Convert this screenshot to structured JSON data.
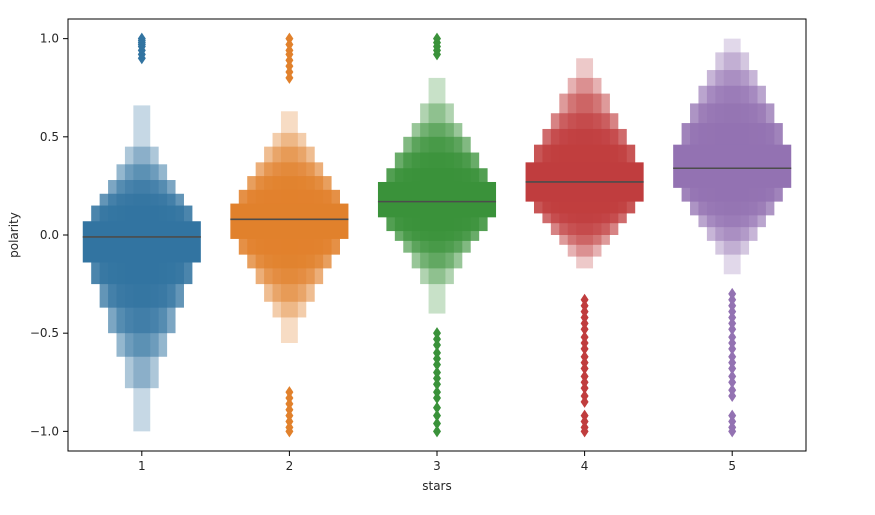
{
  "chart_data": {
    "type": "boxen",
    "title": "",
    "xlabel": "stars",
    "ylabel": "polarity",
    "categories": [
      "1",
      "2",
      "3",
      "4",
      "5"
    ],
    "ylim": [
      -1.1,
      1.1
    ],
    "yticks": [
      -1.0,
      -0.5,
      0.0,
      0.5,
      1.0
    ],
    "ytick_labels": [
      "−1.0",
      "−0.5",
      "0.0",
      "0.5",
      "1.0"
    ],
    "grid": false,
    "legend": "none",
    "series": [
      {
        "category": "1",
        "color": "#3274a1",
        "median": -0.01,
        "letter_values": [
          [
            -0.14,
            0.07
          ],
          [
            -0.25,
            0.15
          ],
          [
            -0.37,
            0.21
          ],
          [
            -0.5,
            0.28
          ],
          [
            -0.62,
            0.36
          ],
          [
            -0.78,
            0.45
          ],
          [
            -1.0,
            0.66
          ]
        ],
        "outliers": [
          1.0,
          0.99,
          0.98,
          0.97,
          0.96,
          0.94,
          0.92,
          0.9
        ]
      },
      {
        "category": "2",
        "color": "#e1812c",
        "median": 0.08,
        "letter_values": [
          [
            -0.02,
            0.16
          ],
          [
            -0.1,
            0.23
          ],
          [
            -0.17,
            0.3
          ],
          [
            -0.25,
            0.37
          ],
          [
            -0.34,
            0.45
          ],
          [
            -0.42,
            0.52
          ],
          [
            -0.55,
            0.63
          ]
        ],
        "outliers": [
          1.0,
          0.97,
          0.94,
          0.92,
          0.89,
          0.86,
          0.83,
          0.8,
          -0.8,
          -0.83,
          -0.86,
          -0.89,
          -0.92,
          -0.95,
          -0.98,
          -1.0
        ]
      },
      {
        "category": "3",
        "color": "#3a923a",
        "median": 0.17,
        "letter_values": [
          [
            0.09,
            0.27
          ],
          [
            0.02,
            0.34
          ],
          [
            -0.03,
            0.42
          ],
          [
            -0.09,
            0.5
          ],
          [
            -0.17,
            0.57
          ],
          [
            -0.25,
            0.67
          ],
          [
            -0.4,
            0.8
          ]
        ],
        "outliers": [
          1.0,
          0.98,
          0.96,
          0.94,
          0.92,
          -0.5,
          -0.53,
          -0.56,
          -0.6,
          -0.63,
          -0.66,
          -0.7,
          -0.73,
          -0.76,
          -0.8,
          -0.83,
          -0.88,
          -0.92,
          -0.96,
          -1.0
        ]
      },
      {
        "category": "4",
        "color": "#c03d3e",
        "median": 0.27,
        "letter_values": [
          [
            0.17,
            0.37
          ],
          [
            0.11,
            0.46
          ],
          [
            0.06,
            0.54
          ],
          [
            0.0,
            0.62
          ],
          [
            -0.05,
            0.72
          ],
          [
            -0.11,
            0.8
          ],
          [
            -0.17,
            0.9
          ]
        ],
        "outliers": [
          -0.33,
          -0.36,
          -0.39,
          -0.42,
          -0.45,
          -0.48,
          -0.52,
          -0.55,
          -0.58,
          -0.62,
          -0.65,
          -0.68,
          -0.72,
          -0.75,
          -0.78,
          -0.82,
          -0.85,
          -0.92,
          -0.95,
          -0.98,
          -1.0
        ]
      },
      {
        "category": "5",
        "color": "#9372b2",
        "median": 0.34,
        "letter_values": [
          [
            0.24,
            0.46
          ],
          [
            0.17,
            0.57
          ],
          [
            0.1,
            0.67
          ],
          [
            0.04,
            0.76
          ],
          [
            -0.03,
            0.84
          ],
          [
            -0.1,
            0.93
          ],
          [
            -0.2,
            1.0
          ]
        ],
        "outliers": [
          -0.3,
          -0.33,
          -0.36,
          -0.39,
          -0.42,
          -0.45,
          -0.48,
          -0.52,
          -0.55,
          -0.58,
          -0.62,
          -0.65,
          -0.68,
          -0.72,
          -0.75,
          -0.79,
          -0.82,
          -0.92,
          -0.95,
          -0.98,
          -1.0
        ]
      }
    ]
  }
}
